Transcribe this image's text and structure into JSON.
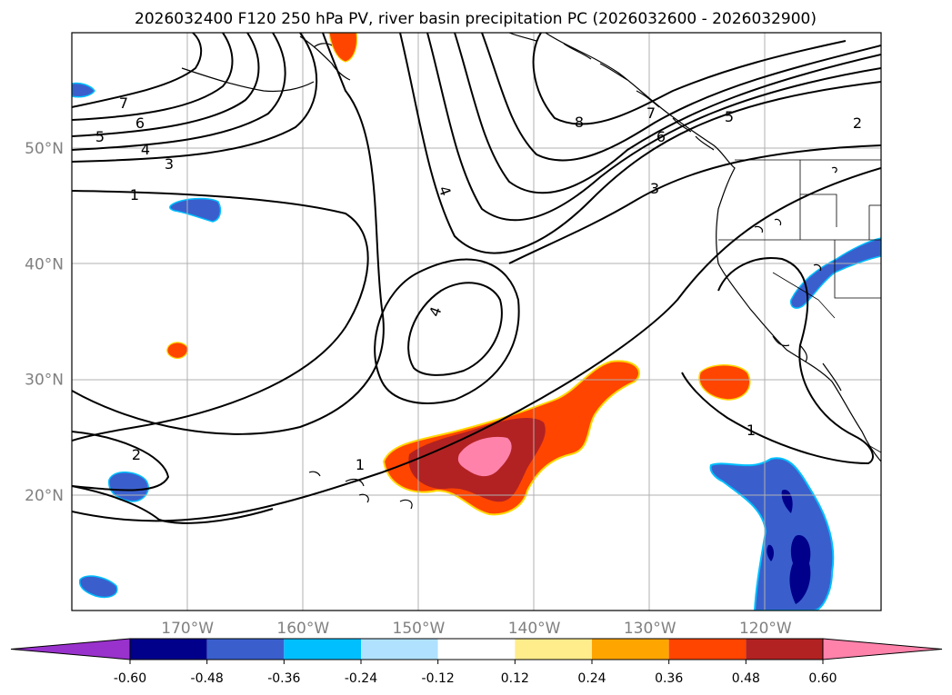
{
  "title": "2026032400 F120 250 hPa PV, river basin precipitation PC (2026032600 - 2026032900)",
  "map": {
    "lon_range": [
      -180,
      -110
    ],
    "lat_range": [
      10,
      60
    ],
    "lon_ticks": [
      {
        "value": -170,
        "label": "170°W"
      },
      {
        "value": -160,
        "label": "160°W"
      },
      {
        "value": -150,
        "label": "150°W"
      },
      {
        "value": -140,
        "label": "140°W"
      },
      {
        "value": -130,
        "label": "130°W"
      },
      {
        "value": -120,
        "label": "120°W"
      }
    ],
    "lat_ticks": [
      {
        "value": 20,
        "label": "20°N"
      },
      {
        "value": 30,
        "label": "30°N"
      },
      {
        "value": 40,
        "label": "40°N"
      },
      {
        "value": 50,
        "label": "50°N"
      }
    ],
    "grid": true,
    "contour_labels": [
      "7",
      "6",
      "5",
      "4",
      "3",
      "1",
      "2",
      "4",
      "4",
      "8",
      "7",
      "6",
      "5",
      "3",
      "2",
      "1",
      "1"
    ]
  },
  "colorbar": {
    "ticks": [
      "-0.60",
      "-0.48",
      "-0.36",
      "-0.24",
      "-0.12",
      "0.12",
      "0.24",
      "0.36",
      "0.48",
      "0.60"
    ],
    "colors": [
      "#9932cc",
      "#00008b",
      "#3a5fcd",
      "#00bfff",
      "#b0e2ff",
      "#ffffff",
      "#ffec8b",
      "#ffa500",
      "#ff4500",
      "#b22222",
      "#ff82ab"
    ],
    "extend": "both"
  }
}
